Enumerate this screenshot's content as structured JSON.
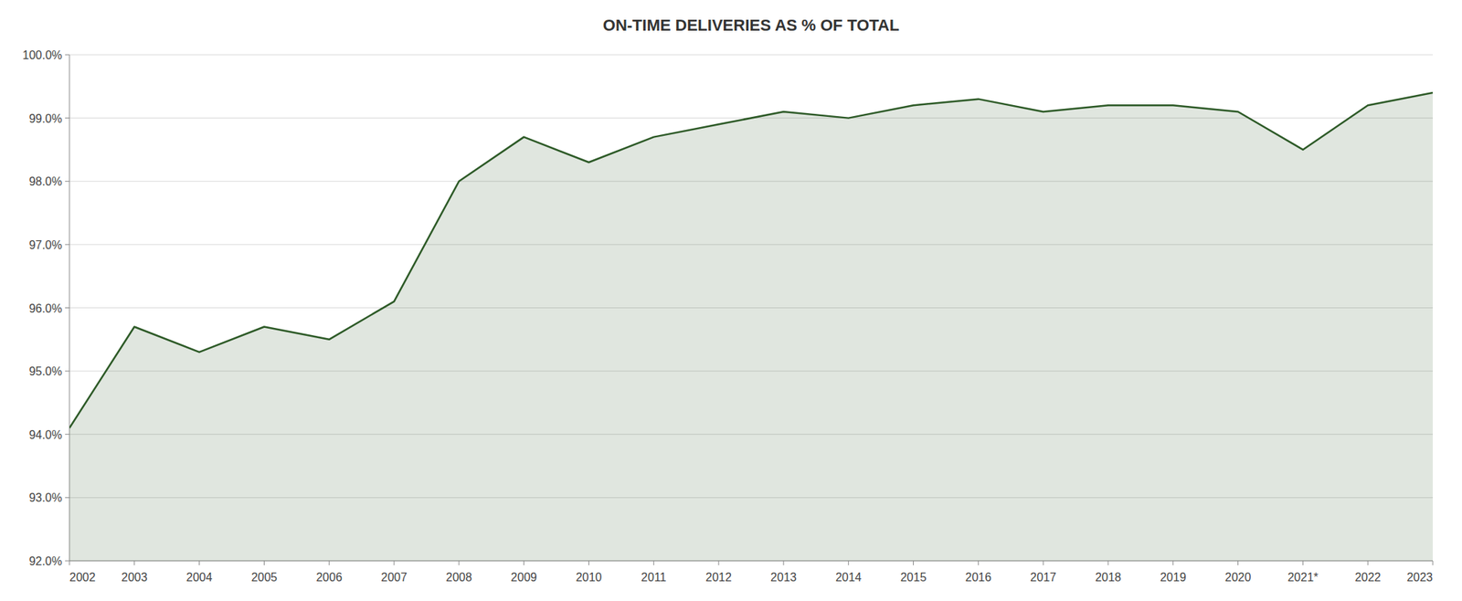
{
  "chart_data": {
    "type": "area",
    "title": "ON-TIME DELIVERIES AS % OF TOTAL",
    "categories": [
      "2002",
      "2003",
      "2004",
      "2005",
      "2006",
      "2007",
      "2008",
      "2009",
      "2010",
      "2011",
      "2012",
      "2013",
      "2014",
      "2015",
      "2016",
      "2017",
      "2018",
      "2019",
      "2020",
      "2021*",
      "2022",
      "2023"
    ],
    "values": [
      94.1,
      95.7,
      95.3,
      95.7,
      95.5,
      96.1,
      98.0,
      98.7,
      98.3,
      98.7,
      98.9,
      99.1,
      99.0,
      99.2,
      99.3,
      99.1,
      99.2,
      99.2,
      99.1,
      98.5,
      99.2,
      99.4
    ],
    "color": "#2d5a27",
    "ylim": [
      92.0,
      100.0
    ],
    "yticks": [
      {
        "value": 92.0,
        "label": "92.0%"
      },
      {
        "value": 93.0,
        "label": "93.0%"
      },
      {
        "value": 94.0,
        "label": "94.0%"
      },
      {
        "value": 95.0,
        "label": "95.0%"
      },
      {
        "value": 96.0,
        "label": "96.0%"
      },
      {
        "value": 97.0,
        "label": "97.0%"
      },
      {
        "value": 98.0,
        "label": "98.0%"
      },
      {
        "value": 99.0,
        "label": "99.0%"
      },
      {
        "value": 100.0,
        "label": "100.0%"
      }
    ],
    "grid": true
  }
}
